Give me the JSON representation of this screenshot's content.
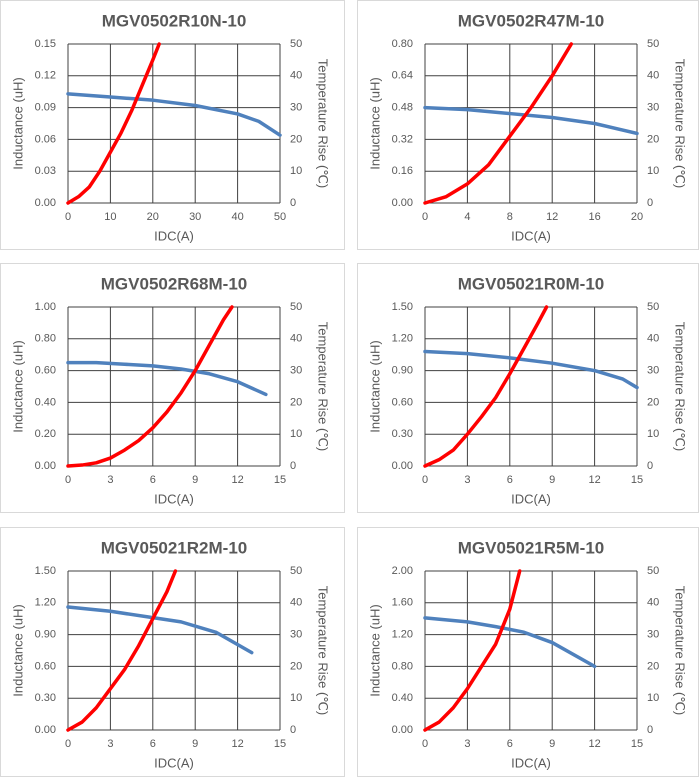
{
  "chart_data": [
    {
      "type": "line",
      "title": "MGV0502R10N-10",
      "x_label": "IDC(A)",
      "y_label": "Inductance (uH)",
      "y2_label": "Temperature Rise (℃)",
      "xlim": [
        0,
        50
      ],
      "xticks": [
        0,
        10,
        20,
        30,
        40,
        50
      ],
      "ylim": [
        0,
        0.15
      ],
      "yticks": [
        {
          "value": 0,
          "label": "0.00"
        },
        {
          "value": 0.03,
          "label": "0.03"
        },
        {
          "value": 0.06,
          "label": "0.06"
        },
        {
          "value": 0.09,
          "label": "0.09"
        },
        {
          "value": 0.12,
          "label": "0.12"
        },
        {
          "value": 0.15,
          "label": "0.15"
        }
      ],
      "y2lim": [
        0,
        50
      ],
      "y2ticks": [
        0,
        10,
        20,
        30,
        40,
        50
      ],
      "grid": true,
      "series": [
        {
          "color": "#4f81bd",
          "x": [
            0,
            10,
            20,
            30,
            40,
            45,
            50
          ],
          "values": [
            0.103,
            0.1,
            0.097,
            0.092,
            0.084,
            0.077,
            0.064
          ]
        },
        {
          "color": "#ff0000",
          "axis": "y2",
          "x": [
            0,
            2.5,
            5,
            7.5,
            10,
            12.5,
            15,
            17.5,
            20,
            21.5
          ],
          "values": [
            0,
            2,
            5,
            10,
            16,
            22,
            29,
            37,
            45,
            50
          ]
        }
      ]
    },
    {
      "type": "line",
      "title": "MGV0502R47M-10",
      "x_label": "IDC(A)",
      "y_label": "Inductance (uH)",
      "y2_label": "Temperature Rise (℃)",
      "xlim": [
        0,
        20
      ],
      "xticks": [
        0,
        4,
        8,
        12,
        16,
        20
      ],
      "ylim": [
        0,
        0.8
      ],
      "yticks": [
        {
          "value": 0,
          "label": "0.00"
        },
        {
          "value": 0.16,
          "label": "0.16"
        },
        {
          "value": 0.32,
          "label": "0.32"
        },
        {
          "value": 0.48,
          "label": "0.48"
        },
        {
          "value": 0.64,
          "label": "0.64"
        },
        {
          "value": 0.8,
          "label": "0.80"
        }
      ],
      "y2lim": [
        0,
        50
      ],
      "y2ticks": [
        0,
        10,
        20,
        30,
        40,
        50
      ],
      "grid": true,
      "series": [
        {
          "color": "#4f81bd",
          "x": [
            0,
            4,
            8,
            12,
            16,
            20
          ],
          "values": [
            0.48,
            0.47,
            0.45,
            0.43,
            0.4,
            0.35
          ]
        },
        {
          "color": "#ff0000",
          "axis": "y2",
          "x": [
            0,
            2,
            4,
            6,
            8,
            10,
            12,
            13.8
          ],
          "values": [
            0,
            2,
            6,
            12,
            21,
            30,
            40,
            50
          ]
        }
      ]
    },
    {
      "type": "line",
      "title": "MGV0502R68M-10",
      "x_label": "IDC(A)",
      "y_label": "Inductance (uH)",
      "y2_label": "Temperature Rise (℃)",
      "xlim": [
        0,
        15
      ],
      "xticks": [
        0,
        3,
        6,
        9,
        12,
        15
      ],
      "ylim": [
        0,
        1
      ],
      "yticks": [
        {
          "value": 0,
          "label": "0.00"
        },
        {
          "value": 0.2,
          "label": "0.20"
        },
        {
          "value": 0.4,
          "label": "0.40"
        },
        {
          "value": 0.6,
          "label": "0.60"
        },
        {
          "value": 0.8,
          "label": "0.80"
        },
        {
          "value": 1,
          "label": "1.00"
        }
      ],
      "y2lim": [
        0,
        50
      ],
      "y2ticks": [
        0,
        10,
        20,
        30,
        40,
        50
      ],
      "grid": true,
      "series": [
        {
          "color": "#4f81bd",
          "x": [
            0,
            2,
            4,
            6,
            8,
            10,
            12,
            14
          ],
          "values": [
            0.65,
            0.65,
            0.64,
            0.63,
            0.61,
            0.58,
            0.53,
            0.45
          ]
        },
        {
          "color": "#ff0000",
          "axis": "y2",
          "x": [
            0,
            1,
            2,
            3,
            4,
            5,
            6,
            7,
            8,
            9,
            10,
            11,
            11.6
          ],
          "values": [
            0,
            0.3,
            1,
            2.5,
            5,
            8,
            12,
            17,
            23,
            30,
            38,
            46,
            50
          ]
        }
      ]
    },
    {
      "type": "line",
      "title": "MGV05021R0M-10",
      "x_label": "IDC(A)",
      "y_label": "Inductance (uH)",
      "y2_label": "Temperature Rise (℃)",
      "xlim": [
        0,
        15
      ],
      "xticks": [
        0,
        3,
        6,
        9,
        12,
        15
      ],
      "ylim": [
        0,
        1.5
      ],
      "yticks": [
        {
          "value": 0,
          "label": "0.00"
        },
        {
          "value": 0.3,
          "label": "0.30"
        },
        {
          "value": 0.6,
          "label": "0.60"
        },
        {
          "value": 0.9,
          "label": "0.90"
        },
        {
          "value": 1.2,
          "label": "1.20"
        },
        {
          "value": 1.5,
          "label": "1.50"
        }
      ],
      "y2lim": [
        0,
        50
      ],
      "y2ticks": [
        0,
        10,
        20,
        30,
        40,
        50
      ],
      "grid": true,
      "series": [
        {
          "color": "#4f81bd",
          "x": [
            0,
            3,
            6,
            9,
            12,
            14,
            15
          ],
          "values": [
            1.08,
            1.06,
            1.02,
            0.97,
            0.9,
            0.82,
            0.74
          ]
        },
        {
          "color": "#ff0000",
          "axis": "y2",
          "x": [
            0,
            1,
            2,
            3,
            4,
            5,
            6,
            7,
            8,
            8.6
          ],
          "values": [
            0,
            2,
            5,
            10,
            15.5,
            21.5,
            29,
            37,
            45,
            50
          ]
        }
      ]
    },
    {
      "type": "line",
      "title": "MGV05021R2M-10",
      "x_label": "IDC(A)",
      "y_label": "Inductance (uH)",
      "y2_label": "Temperature Rise (℃)",
      "xlim": [
        0,
        15
      ],
      "xticks": [
        0,
        3,
        6,
        9,
        12,
        15
      ],
      "ylim": [
        0,
        1.5
      ],
      "yticks": [
        {
          "value": 0,
          "label": "0.00"
        },
        {
          "value": 0.3,
          "label": "0.30"
        },
        {
          "value": 0.6,
          "label": "0.60"
        },
        {
          "value": 0.9,
          "label": "0.90"
        },
        {
          "value": 1.2,
          "label": "1.20"
        },
        {
          "value": 1.5,
          "label": "1.50"
        }
      ],
      "y2lim": [
        0,
        50
      ],
      "y2ticks": [
        0,
        10,
        20,
        30,
        40,
        50
      ],
      "grid": true,
      "series": [
        {
          "color": "#4f81bd",
          "x": [
            0,
            3,
            6,
            8,
            10.5,
            13
          ],
          "values": [
            1.16,
            1.12,
            1.06,
            1.02,
            0.92,
            0.73
          ]
        },
        {
          "color": "#ff0000",
          "axis": "y2",
          "x": [
            0,
            1,
            2,
            3,
            4,
            5,
            6,
            7,
            7.6
          ],
          "values": [
            0,
            2.5,
            7,
            13,
            19,
            26.5,
            35,
            43.5,
            50
          ]
        }
      ]
    },
    {
      "type": "line",
      "title": "MGV05021R5M-10",
      "x_label": "IDC(A)",
      "y_label": "Inductance (uH)",
      "y2_label": "Temperature Rise (℃)",
      "xlim": [
        0,
        15
      ],
      "xticks": [
        0,
        3,
        6,
        9,
        12,
        15
      ],
      "ylim": [
        0,
        2
      ],
      "yticks": [
        {
          "value": 0,
          "label": "0.00"
        },
        {
          "value": 0.4,
          "label": "0.40"
        },
        {
          "value": 0.8,
          "label": "0.80"
        },
        {
          "value": 1.2,
          "label": "1.20"
        },
        {
          "value": 1.6,
          "label": "1.60"
        },
        {
          "value": 2,
          "label": "2.00"
        }
      ],
      "y2lim": [
        0,
        50
      ],
      "y2ticks": [
        0,
        10,
        20,
        30,
        40,
        50
      ],
      "grid": true,
      "series": [
        {
          "color": "#4f81bd",
          "x": [
            0,
            3,
            5,
            7,
            9,
            12
          ],
          "values": [
            1.41,
            1.36,
            1.3,
            1.23,
            1.1,
            0.8
          ]
        },
        {
          "color": "#ff0000",
          "axis": "y2",
          "x": [
            0,
            1,
            2,
            3,
            4,
            5,
            6,
            6.7
          ],
          "values": [
            0,
            2.5,
            7,
            13,
            20,
            27,
            38,
            50
          ]
        }
      ]
    }
  ]
}
